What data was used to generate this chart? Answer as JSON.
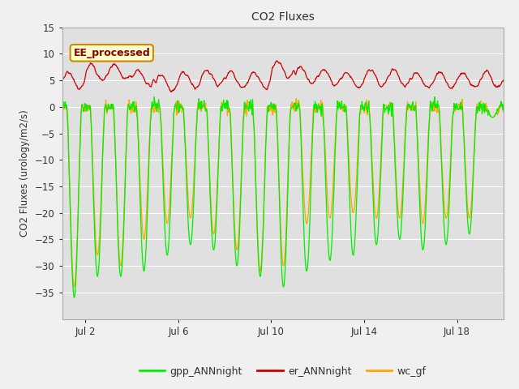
{
  "title": "CO2 Fluxes",
  "ylabel": "CO2 Fluxes (urology/m2/s)",
  "ylim": [
    -40,
    15
  ],
  "yticks": [
    -35,
    -30,
    -25,
    -20,
    -15,
    -10,
    -5,
    0,
    5,
    10,
    15
  ],
  "background_color": "#f0f0f0",
  "plot_bg_color": "#e0e0e0",
  "gpp_color": "#00ee00",
  "er_color": "#cc0000",
  "wc_color": "#ffa500",
  "annotation_text": "EE_processed",
  "annotation_bg": "#ffffcc",
  "annotation_border": "#cc8800",
  "legend_labels": [
    "gpp_ANNnight",
    "er_ANNnight",
    "wc_gf"
  ],
  "x_tick_labels": [
    "Jul 2",
    "Jul 6",
    "Jul 10",
    "Jul 14",
    "Jul 18"
  ],
  "x_tick_positions": [
    1,
    5,
    9,
    13,
    17
  ],
  "xlim": [
    0,
    19
  ],
  "n_days": 19,
  "half_hours_per_day": 48,
  "seed": 42,
  "day_amps_gpp": [
    36,
    32,
    32,
    31,
    28,
    26,
    27,
    30,
    32,
    34,
    31,
    29,
    28,
    26,
    25,
    27,
    26,
    24,
    2
  ],
  "day_amps_wc": [
    34,
    28,
    30,
    25,
    22,
    21,
    24,
    27,
    31,
    30,
    22,
    21,
    20,
    21,
    21,
    22,
    21,
    21,
    2
  ],
  "er_bases": [
    5.0,
    6.5,
    6.5,
    5.5,
    4.5,
    5.0,
    5.5,
    5.0,
    5.0,
    7.0,
    6.0,
    5.5,
    5.0,
    5.5,
    5.5,
    5.0,
    5.0,
    5.0,
    5.0
  ]
}
